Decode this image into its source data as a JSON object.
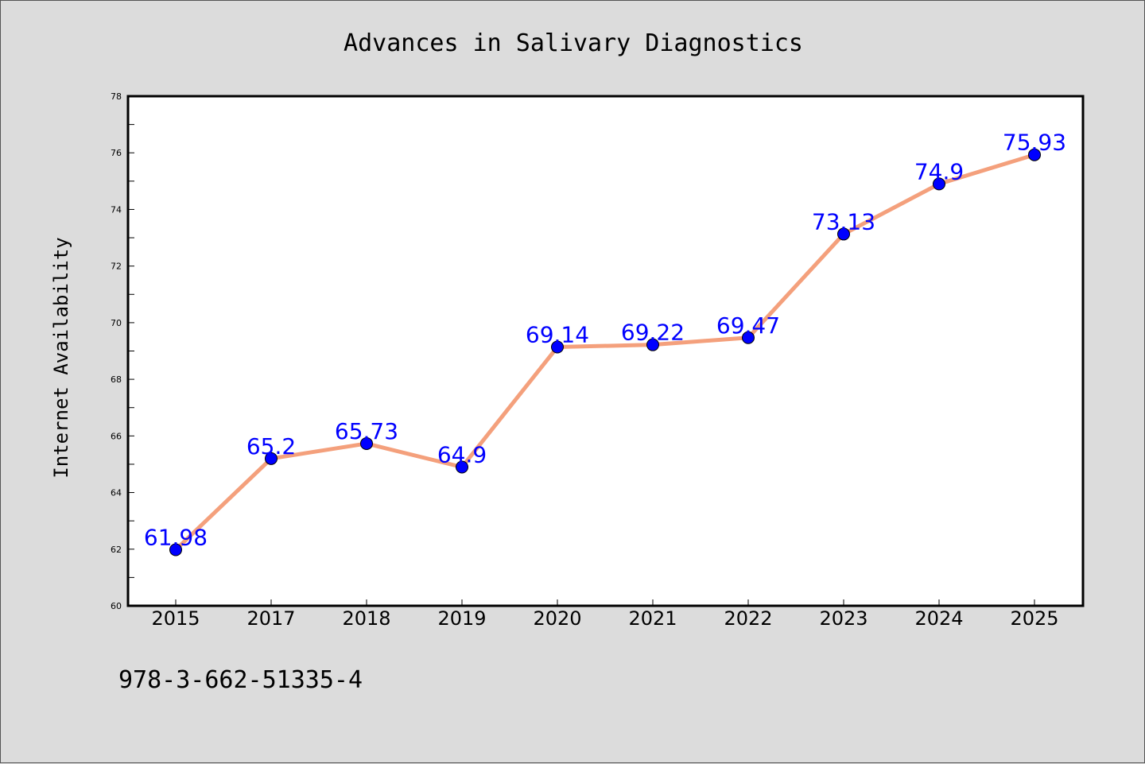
{
  "chart_data": {
    "type": "line",
    "title": "Advances in Salivary Diagnostics",
    "xlabel": "",
    "ylabel": "Internet Availability",
    "categories": [
      "2015",
      "2017",
      "2018",
      "2019",
      "2020",
      "2021",
      "2022",
      "2023",
      "2024",
      "2025"
    ],
    "series": [
      {
        "values": [
          61.98,
          65.2,
          65.73,
          64.9,
          69.14,
          69.22,
          69.47,
          73.13,
          74.9,
          75.93
        ],
        "data_labels": [
          "61.98",
          "65.2",
          "65.73",
          "64.9",
          "69.14",
          "69.22",
          "69.47",
          "73.13",
          "74.9",
          "75.93"
        ],
        "line_color": "#f4a07c",
        "marker_color": "#0000ff",
        "label_color": "#0000ff"
      }
    ],
    "ylim": [
      60,
      78
    ],
    "yticks": [
      "60",
      "62",
      "64",
      "66",
      "68",
      "70",
      "72",
      "74",
      "76",
      "78"
    ],
    "grid": false,
    "legend": "none"
  },
  "footer": {
    "isbn": "978-3-662-51335-4"
  },
  "colors": {
    "background": "#dcdcdc",
    "plot_background": "#ffffff",
    "axis": "#000000"
  }
}
